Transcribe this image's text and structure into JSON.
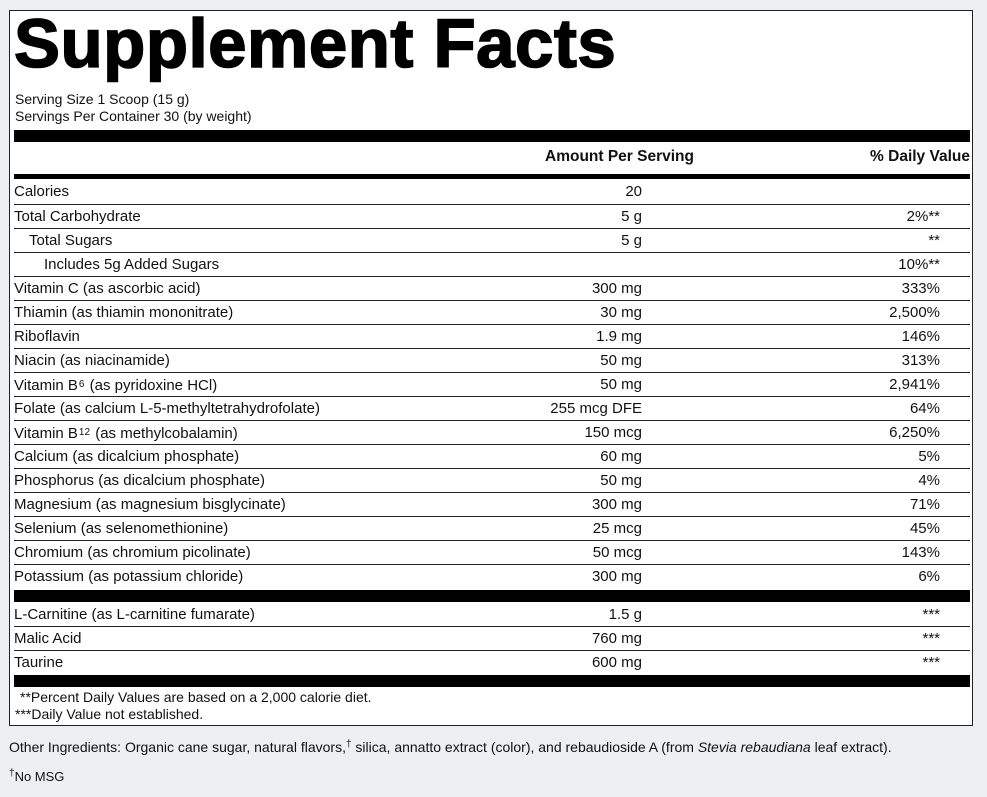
{
  "title": "Supplement Facts",
  "serving_size": "Serving Size 1 Scoop (15 g)",
  "servings_per_container": "Servings Per Container 30 (by weight)",
  "header": {
    "amount": "Amount Per Serving",
    "daily_value": "% Daily Value"
  },
  "rows": [
    {
      "name": "Calories",
      "amount": "20",
      "dv": ""
    },
    {
      "name": "Total Carbohydrate",
      "amount": "5 g",
      "dv": "2%**"
    },
    {
      "name": "Total Sugars",
      "amount": "5 g",
      "dv": "**"
    },
    {
      "name": "Includes 5g Added Sugars",
      "amount": "",
      "dv": "10%**"
    },
    {
      "name": "Vitamin C (as ascorbic acid)",
      "amount": "300 mg",
      "dv": "333%"
    },
    {
      "name": "Thiamin (as thiamin mononitrate)",
      "amount": "30 mg",
      "dv": "2,500%"
    },
    {
      "name": "Riboflavin",
      "amount": "1.9 mg",
      "dv": "146%"
    },
    {
      "name": "Niacin (as niacinamide)",
      "amount": "50 mg",
      "dv": "313%"
    },
    {
      "name_pre": "Vitamin B",
      "name_sub": "6",
      "name_post": " (as pyridoxine HCl)",
      "amount": "50 mg",
      "dv": "2,941%"
    },
    {
      "name": "Folate (as calcium L-5-methyltetrahydrofolate)",
      "amount": "255 mcg DFE",
      "dv": "64%"
    },
    {
      "name_pre": "Vitamin B",
      "name_sub": "12",
      "name_post": " (as methylcobalamin)",
      "amount": "150 mcg",
      "dv": "6,250%"
    },
    {
      "name": "Calcium (as dicalcium phosphate)",
      "amount": "60 mg",
      "dv": "5%"
    },
    {
      "name": "Phosphorus (as dicalcium phosphate)",
      "amount": "50 mg",
      "dv": "4%"
    },
    {
      "name": "Magnesium (as magnesium bisglycinate)",
      "amount": "300 mg",
      "dv": "71%"
    },
    {
      "name": "Selenium (as selenomethionine)",
      "amount": "25 mcg",
      "dv": "45%"
    },
    {
      "name": "Chromium (as chromium picolinate)",
      "amount": "50 mcg",
      "dv": "143%"
    },
    {
      "name": "Potassium (as potassium chloride)",
      "amount": "300 mg",
      "dv": "6%"
    }
  ],
  "other_rows": [
    {
      "name": "L-Carnitine (as L-carnitine fumarate)",
      "amount": "1.5 g",
      "dv": "***"
    },
    {
      "name": "Malic Acid",
      "amount": "760 mg",
      "dv": "***"
    },
    {
      "name": "Taurine",
      "amount": "600 mg",
      "dv": "***"
    }
  ],
  "footnotes": {
    "percent_dv": "**Percent Daily Values are based on a 2,000 calorie diet.",
    "not_established": "***Daily Value not established."
  },
  "other_ingredients": {
    "text_before": "Other Ingredients: Organic cane sugar, natural flavors,",
    "dagger": "†",
    "text_middle": " silica, annatto extract (color), and rebaudioside A (from ",
    "italic": "Stevia rebaudiana",
    "text_after": " leaf extract)."
  },
  "no_msg": {
    "dagger": "†",
    "text": "No MSG"
  }
}
